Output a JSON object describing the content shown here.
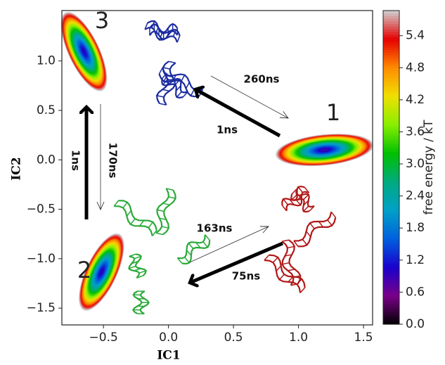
{
  "chart_data": {
    "type": "contour",
    "xlabel": "IC1",
    "ylabel": "IC2",
    "xlim": [
      -0.82,
      1.57
    ],
    "ylim": [
      -1.67,
      1.51
    ],
    "xticks": [
      {
        "value": -0.5,
        "label": "−0.5"
      },
      {
        "value": 0,
        "label": "0.0"
      },
      0.5,
      {
        "value": 1,
        "label": "1.0"
      },
      1.5
    ],
    "yticks": [
      {
        "value": -1.5,
        "label": "−1.5"
      },
      {
        "value": -1,
        "label": "−1.0"
      },
      {
        "value": -0.5,
        "label": "−0.5"
      },
      {
        "value": 0,
        "label": "0.0"
      },
      0.5,
      {
        "value": 1,
        "label": "1.0"
      }
    ],
    "colorbar": {
      "label": "free energy / kT",
      "clim": [
        0,
        5.87
      ],
      "ticks": [
        {
          "value": 0,
          "label": "0.0"
        },
        0.6,
        1.2,
        1.8,
        2.4,
        {
          "value": 3,
          "label": "3.0"
        },
        3.6,
        4.2,
        4.8,
        5.4
      ],
      "colormap": [
        "#000000",
        "#7a0088",
        "#1a00cc",
        "#0060dd",
        "#00a0c8",
        "#00aa80",
        "#00c000",
        "#88ee00",
        "#f0e000",
        "#ff8c00",
        "#e60000",
        "#d0d0d0"
      ]
    },
    "basins": [
      {
        "label": "1",
        "from": [
          0.9,
          0.06
        ],
        "to": [
          1.5,
          0.14
        ],
        "min_energy": 0.7
      },
      {
        "label": "2",
        "from": [
          -0.62,
          -1.43
        ],
        "to": [
          -0.41,
          -0.84
        ],
        "min_energy": 0.8
      },
      {
        "label": "3",
        "from": [
          -0.76,
          1.4
        ],
        "to": [
          -0.54,
          0.79
        ],
        "min_energy": 0.8
      }
    ],
    "transitions": [
      {
        "label": "260ns"
      },
      {
        "label": "1ns"
      },
      {
        "label": "1ns"
      },
      {
        "label": "170ns"
      },
      {
        "label": "163ns"
      },
      {
        "label": "75ns"
      }
    ]
  }
}
